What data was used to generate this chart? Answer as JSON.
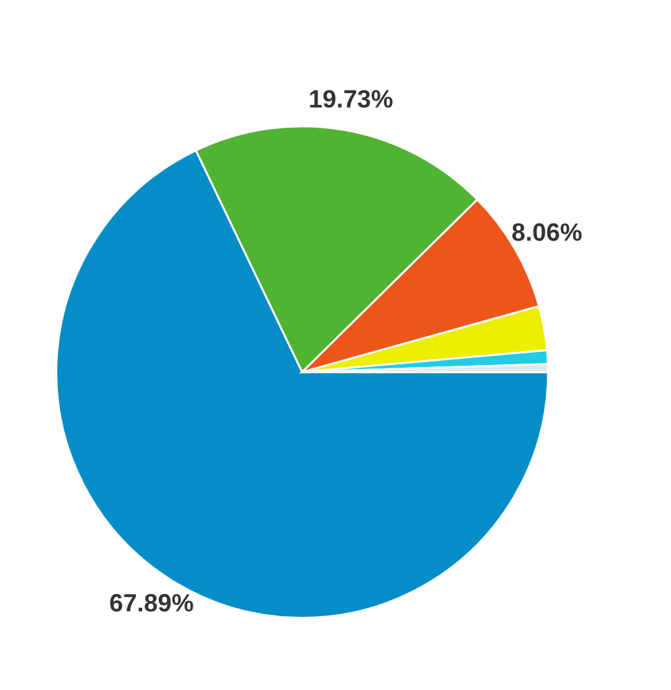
{
  "chart_data": {
    "type": "pie",
    "categories": [
      null,
      null,
      null,
      null,
      null,
      null
    ],
    "values": [
      67.89,
      19.73,
      8.06,
      2.9,
      0.9,
      0.52
    ],
    "colors": [
      "#058dc7",
      "#50b432",
      "#ed561b",
      "#edef00",
      "#24cbe5",
      "#e0e8ee"
    ],
    "value_labels": [
      "67.89%",
      "19.73%",
      "8.06%",
      null,
      null,
      null
    ]
  }
}
